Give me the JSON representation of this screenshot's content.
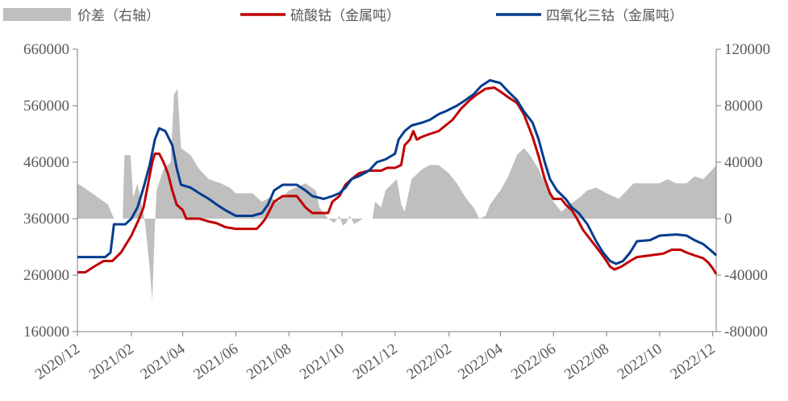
{
  "chart_data": {
    "type": "line",
    "title": "",
    "legend_position": "top",
    "series": [
      {
        "name": "价差（右轴）",
        "kind": "area",
        "axis": "right",
        "color": "#BFBFBF",
        "points": [
          [
            "2020-12-01",
            25000
          ],
          [
            "2020-12-18",
            18000
          ],
          [
            "2021-01-05",
            10000
          ],
          [
            "2021-01-12",
            0
          ],
          [
            "2021-01-22",
            0
          ],
          [
            "2021-01-24",
            45000
          ],
          [
            "2021-01-31",
            45000
          ],
          [
            "2021-02-03",
            15000
          ],
          [
            "2021-02-08",
            25000
          ],
          [
            "2021-02-16",
            0
          ],
          [
            "2021-02-18",
            -10000
          ],
          [
            "2021-02-22",
            -35000
          ],
          [
            "2021-02-25",
            -58000
          ],
          [
            "2021-02-28",
            -5000
          ],
          [
            "2021-03-02",
            20000
          ],
          [
            "2021-03-10",
            35000
          ],
          [
            "2021-03-18",
            40000
          ],
          [
            "2021-03-22",
            88000
          ],
          [
            "2021-03-26",
            92000
          ],
          [
            "2021-03-30",
            50000
          ],
          [
            "2021-04-10",
            45000
          ],
          [
            "2021-04-20",
            35000
          ],
          [
            "2021-05-01",
            28000
          ],
          [
            "2021-05-15",
            25000
          ],
          [
            "2021-05-25",
            22000
          ],
          [
            "2021-06-01",
            18000
          ],
          [
            "2021-06-20",
            18000
          ],
          [
            "2021-07-01",
            12000
          ],
          [
            "2021-07-10",
            15000
          ],
          [
            "2021-07-20",
            12000
          ],
          [
            "2021-08-01",
            20000
          ],
          [
            "2021-08-20",
            25000
          ],
          [
            "2021-09-01",
            20000
          ],
          [
            "2021-09-05",
            8000
          ],
          [
            "2021-09-15",
            0
          ],
          [
            "2021-09-22",
            -3000
          ],
          [
            "2021-09-28",
            2000
          ],
          [
            "2021-10-02",
            -5000
          ],
          [
            "2021-10-06",
            -3000
          ],
          [
            "2021-10-10",
            2000
          ],
          [
            "2021-10-15",
            -4000
          ],
          [
            "2021-10-25",
            0
          ],
          [
            "2021-11-05",
            0
          ],
          [
            "2021-11-08",
            12000
          ],
          [
            "2021-11-15",
            8000
          ],
          [
            "2021-11-20",
            20000
          ],
          [
            "2021-11-28",
            25000
          ],
          [
            "2021-12-03",
            28000
          ],
          [
            "2021-12-08",
            10000
          ],
          [
            "2021-12-12",
            5000
          ],
          [
            "2021-12-20",
            28000
          ],
          [
            "2022-01-01",
            35000
          ],
          [
            "2022-01-10",
            38000
          ],
          [
            "2022-01-20",
            38000
          ],
          [
            "2022-02-01",
            32000
          ],
          [
            "2022-02-10",
            25000
          ],
          [
            "2022-02-20",
            15000
          ],
          [
            "2022-03-01",
            8000
          ],
          [
            "2022-03-08",
            0
          ],
          [
            "2022-03-15",
            2000
          ],
          [
            "2022-03-20",
            10000
          ],
          [
            "2022-04-01",
            20000
          ],
          [
            "2022-04-10",
            30000
          ],
          [
            "2022-04-20",
            45000
          ],
          [
            "2022-04-28",
            50000
          ],
          [
            "2022-05-05",
            45000
          ],
          [
            "2022-05-15",
            35000
          ],
          [
            "2022-05-22",
            25000
          ],
          [
            "2022-06-01",
            12000
          ],
          [
            "2022-06-10",
            5000
          ],
          [
            "2022-06-20",
            10000
          ],
          [
            "2022-07-01",
            15000
          ],
          [
            "2022-07-10",
            20000
          ],
          [
            "2022-07-20",
            22000
          ],
          [
            "2022-08-01",
            18000
          ],
          [
            "2022-08-15",
            14000
          ],
          [
            "2022-09-01",
            25000
          ],
          [
            "2022-09-15",
            25000
          ],
          [
            "2022-10-01",
            25000
          ],
          [
            "2022-10-10",
            28000
          ],
          [
            "2022-10-20",
            25000
          ],
          [
            "2022-11-01",
            25000
          ],
          [
            "2022-11-10",
            30000
          ],
          [
            "2022-11-20",
            28000
          ],
          [
            "2022-12-01",
            35000
          ],
          [
            "2022-12-05",
            38000
          ]
        ]
      },
      {
        "name": "硫酸钴（金属吨）",
        "kind": "line",
        "axis": "left",
        "color": "#C00000",
        "points": [
          [
            "2020-12-01",
            265000
          ],
          [
            "2020-12-10",
            265000
          ],
          [
            "2020-12-20",
            275000
          ],
          [
            "2020-12-31",
            285000
          ],
          [
            "2021-01-10",
            285000
          ],
          [
            "2021-01-20",
            300000
          ],
          [
            "2021-02-01",
            330000
          ],
          [
            "2021-02-10",
            360000
          ],
          [
            "2021-02-15",
            380000
          ],
          [
            "2021-02-20",
            420000
          ],
          [
            "2021-02-25",
            460000
          ],
          [
            "2021-02-28",
            475000
          ],
          [
            "2021-03-05",
            475000
          ],
          [
            "2021-03-10",
            460000
          ],
          [
            "2021-03-15",
            440000
          ],
          [
            "2021-03-20",
            410000
          ],
          [
            "2021-03-25",
            385000
          ],
          [
            "2021-04-01",
            375000
          ],
          [
            "2021-04-05",
            360000
          ],
          [
            "2021-04-20",
            360000
          ],
          [
            "2021-05-01",
            355000
          ],
          [
            "2021-05-10",
            352000
          ],
          [
            "2021-05-20",
            345000
          ],
          [
            "2021-06-01",
            342000
          ],
          [
            "2021-06-10",
            342000
          ],
          [
            "2021-06-20",
            342000
          ],
          [
            "2021-06-25",
            342000
          ],
          [
            "2021-06-30",
            350000
          ],
          [
            "2021-07-05",
            360000
          ],
          [
            "2021-07-10",
            375000
          ],
          [
            "2021-07-15",
            390000
          ],
          [
            "2021-07-25",
            400000
          ],
          [
            "2021-08-10",
            400000
          ],
          [
            "2021-08-20",
            380000
          ],
          [
            "2021-08-28",
            370000
          ],
          [
            "2021-09-15",
            370000
          ],
          [
            "2021-09-20",
            390000
          ],
          [
            "2021-09-28",
            400000
          ],
          [
            "2021-10-05",
            420000
          ],
          [
            "2021-10-12",
            430000
          ],
          [
            "2021-10-20",
            440000
          ],
          [
            "2021-11-01",
            445000
          ],
          [
            "2021-11-15",
            445000
          ],
          [
            "2021-11-22",
            450000
          ],
          [
            "2021-12-01",
            450000
          ],
          [
            "2021-12-08",
            455000
          ],
          [
            "2021-12-12",
            490000
          ],
          [
            "2021-12-18",
            500000
          ],
          [
            "2021-12-22",
            515000
          ],
          [
            "2021-12-26",
            500000
          ],
          [
            "2022-01-01",
            505000
          ],
          [
            "2022-01-10",
            510000
          ],
          [
            "2022-01-20",
            515000
          ],
          [
            "2022-01-28",
            525000
          ],
          [
            "2022-02-05",
            535000
          ],
          [
            "2022-02-15",
            555000
          ],
          [
            "2022-02-25",
            570000
          ],
          [
            "2022-03-05",
            580000
          ],
          [
            "2022-03-15",
            590000
          ],
          [
            "2022-03-25",
            592000
          ],
          [
            "2022-04-01",
            585000
          ],
          [
            "2022-04-10",
            575000
          ],
          [
            "2022-04-20",
            565000
          ],
          [
            "2022-04-28",
            545000
          ],
          [
            "2022-05-08",
            505000
          ],
          [
            "2022-05-15",
            470000
          ],
          [
            "2022-05-22",
            430000
          ],
          [
            "2022-05-28",
            405000
          ],
          [
            "2022-06-01",
            395000
          ],
          [
            "2022-06-10",
            395000
          ],
          [
            "2022-06-15",
            385000
          ],
          [
            "2022-06-22",
            375000
          ],
          [
            "2022-06-28",
            360000
          ],
          [
            "2022-07-05",
            340000
          ],
          [
            "2022-07-15",
            320000
          ],
          [
            "2022-07-25",
            300000
          ],
          [
            "2022-08-01",
            285000
          ],
          [
            "2022-08-05",
            275000
          ],
          [
            "2022-08-10",
            270000
          ],
          [
            "2022-08-18",
            275000
          ],
          [
            "2022-08-28",
            285000
          ],
          [
            "2022-09-05",
            292000
          ],
          [
            "2022-09-20",
            295000
          ],
          [
            "2022-10-05",
            298000
          ],
          [
            "2022-10-15",
            305000
          ],
          [
            "2022-10-25",
            305000
          ],
          [
            "2022-11-01",
            300000
          ],
          [
            "2022-11-10",
            295000
          ],
          [
            "2022-11-20",
            290000
          ],
          [
            "2022-11-26",
            282000
          ],
          [
            "2022-12-01",
            272000
          ],
          [
            "2022-12-05",
            262000
          ]
        ]
      },
      {
        "name": "四氧化三钴（金属吨）",
        "kind": "line",
        "axis": "left",
        "color": "#003C8F",
        "points": [
          [
            "2020-12-01",
            292000
          ],
          [
            "2020-12-20",
            292000
          ],
          [
            "2021-01-02",
            292000
          ],
          [
            "2021-01-08",
            300000
          ],
          [
            "2021-01-12",
            350000
          ],
          [
            "2021-01-25",
            350000
          ],
          [
            "2021-02-01",
            360000
          ],
          [
            "2021-02-08",
            380000
          ],
          [
            "2021-02-15",
            415000
          ],
          [
            "2021-02-22",
            455000
          ],
          [
            "2021-02-28",
            500000
          ],
          [
            "2021-03-05",
            520000
          ],
          [
            "2021-03-12",
            515000
          ],
          [
            "2021-03-20",
            490000
          ],
          [
            "2021-03-25",
            450000
          ],
          [
            "2021-03-30",
            420000
          ],
          [
            "2021-04-10",
            415000
          ],
          [
            "2021-04-20",
            405000
          ],
          [
            "2021-05-01",
            395000
          ],
          [
            "2021-05-10",
            385000
          ],
          [
            "2021-05-20",
            375000
          ],
          [
            "2021-06-01",
            365000
          ],
          [
            "2021-06-20",
            365000
          ],
          [
            "2021-07-01",
            370000
          ],
          [
            "2021-07-08",
            385000
          ],
          [
            "2021-07-15",
            410000
          ],
          [
            "2021-07-25",
            420000
          ],
          [
            "2021-08-10",
            420000
          ],
          [
            "2021-08-20",
            410000
          ],
          [
            "2021-08-28",
            400000
          ],
          [
            "2021-09-10",
            395000
          ],
          [
            "2021-09-20",
            400000
          ],
          [
            "2021-09-28",
            405000
          ],
          [
            "2021-10-05",
            415000
          ],
          [
            "2021-10-12",
            430000
          ],
          [
            "2021-10-20",
            435000
          ],
          [
            "2021-11-01",
            445000
          ],
          [
            "2021-11-10",
            460000
          ],
          [
            "2021-11-20",
            465000
          ],
          [
            "2021-12-01",
            475000
          ],
          [
            "2021-12-05",
            500000
          ],
          [
            "2021-12-12",
            515000
          ],
          [
            "2021-12-20",
            525000
          ],
          [
            "2022-01-01",
            530000
          ],
          [
            "2022-01-10",
            535000
          ],
          [
            "2022-01-20",
            545000
          ],
          [
            "2022-01-28",
            550000
          ],
          [
            "2022-02-10",
            560000
          ],
          [
            "2022-02-20",
            570000
          ],
          [
            "2022-03-01",
            580000
          ],
          [
            "2022-03-10",
            595000
          ],
          [
            "2022-03-20",
            605000
          ],
          [
            "2022-04-01",
            600000
          ],
          [
            "2022-04-10",
            585000
          ],
          [
            "2022-04-20",
            570000
          ],
          [
            "2022-04-28",
            550000
          ],
          [
            "2022-05-08",
            530000
          ],
          [
            "2022-05-15",
            500000
          ],
          [
            "2022-05-22",
            460000
          ],
          [
            "2022-05-28",
            430000
          ],
          [
            "2022-06-05",
            410000
          ],
          [
            "2022-06-15",
            395000
          ],
          [
            "2022-06-22",
            380000
          ],
          [
            "2022-06-30",
            370000
          ],
          [
            "2022-07-10",
            350000
          ],
          [
            "2022-07-20",
            320000
          ],
          [
            "2022-07-28",
            300000
          ],
          [
            "2022-08-05",
            285000
          ],
          [
            "2022-08-12",
            280000
          ],
          [
            "2022-08-20",
            285000
          ],
          [
            "2022-08-28",
            300000
          ],
          [
            "2022-09-05",
            320000
          ],
          [
            "2022-09-20",
            322000
          ],
          [
            "2022-10-01",
            330000
          ],
          [
            "2022-10-20",
            332000
          ],
          [
            "2022-11-01",
            330000
          ],
          [
            "2022-11-10",
            322000
          ],
          [
            "2022-11-20",
            315000
          ],
          [
            "2022-11-28",
            305000
          ],
          [
            "2022-12-03",
            298000
          ],
          [
            "2022-12-05",
            295000
          ]
        ]
      }
    ],
    "x_tick_labels": [
      "2020/12",
      "2021/02",
      "2021/04",
      "2021/06",
      "2021/08",
      "2021/10",
      "2021/12",
      "2022/02",
      "2022/04",
      "2022/06",
      "2022/08",
      "2022/10",
      "2022/12"
    ],
    "y_left": {
      "lim": [
        160000,
        660000
      ],
      "ticks": [
        "160000",
        "260000",
        "360000",
        "460000",
        "560000",
        "660000"
      ]
    },
    "y_right": {
      "lim": [
        -80000,
        120000
      ],
      "ticks": [
        "-80000",
        "-40000",
        "0",
        "40000",
        "80000",
        "120000"
      ]
    },
    "grid": false
  }
}
